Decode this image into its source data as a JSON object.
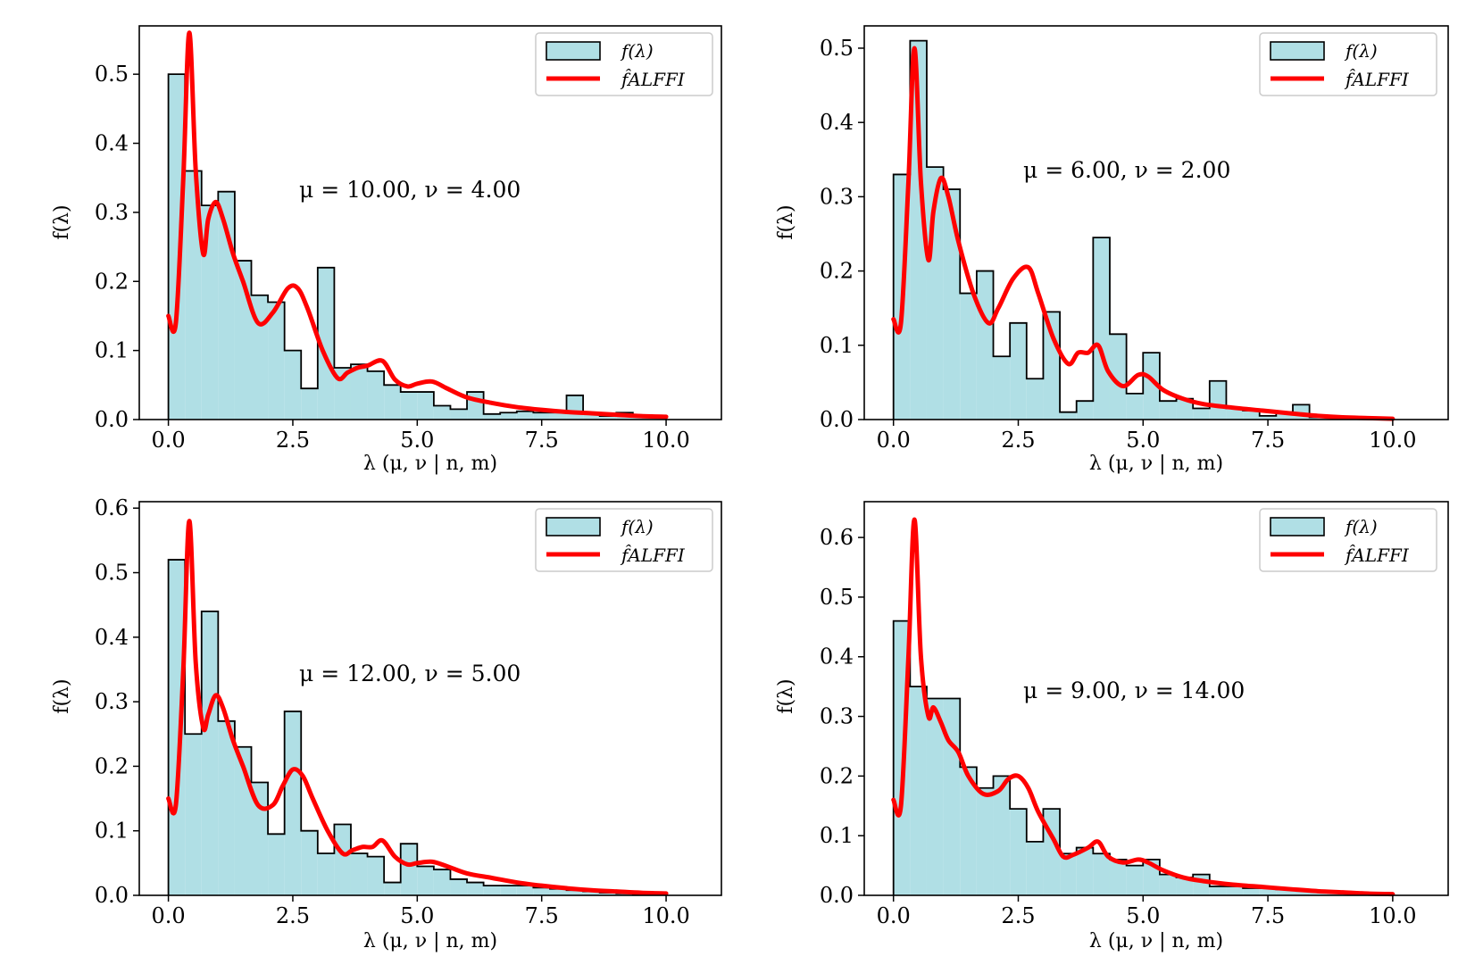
{
  "colors": {
    "hist_fill": "#b0dfe5",
    "hist_edge": "#000000",
    "curve": "#ff0000",
    "frame": "#000000",
    "legend_edge": "#cccccc"
  },
  "chart_data": [
    {
      "type": "bar",
      "annotation": "μ = 10.00, ν = 4.00",
      "xlabel": "λ (μ, ν | n, m)",
      "ylabel": "f(λ)",
      "xlim": [
        0,
        10
      ],
      "ylim": [
        0,
        0.57
      ],
      "xticks": [
        "0.0",
        "2.5",
        "5.0",
        "7.5",
        "10.0"
      ],
      "yticks": [
        "0.0",
        "0.1",
        "0.2",
        "0.3",
        "0.4",
        "0.5"
      ],
      "legend": [
        "f(λ)",
        "f̂ALFFI"
      ],
      "legend_position": "upper right",
      "bin_width": 0.3333,
      "bin_start": 0,
      "histogram": [
        0.5,
        0.36,
        0.31,
        0.33,
        0.23,
        0.18,
        0.17,
        0.1,
        0.045,
        0.22,
        0.075,
        0.08,
        0.07,
        0.05,
        0.04,
        0.04,
        0.02,
        0.015,
        0.04,
        0.008,
        0.01,
        0.012,
        0.01,
        0.01,
        0.035,
        0.008,
        0.005,
        0.01,
        0.006,
        0.003
      ],
      "curve": {
        "x": [
          0,
          0.15,
          0.3,
          0.42,
          0.55,
          0.7,
          0.8,
          0.95,
          1.1,
          1.3,
          1.5,
          1.8,
          2.1,
          2.4,
          2.6,
          2.8,
          3.1,
          3.4,
          3.6,
          3.8,
          4.0,
          4.3,
          4.55,
          4.8,
          5.0,
          5.3,
          5.6,
          6.0,
          6.5,
          7.0,
          7.5,
          8.0,
          8.5,
          9.0,
          9.5,
          10.0
        ],
        "y": [
          0.15,
          0.14,
          0.35,
          0.56,
          0.36,
          0.24,
          0.29,
          0.315,
          0.29,
          0.24,
          0.2,
          0.14,
          0.155,
          0.19,
          0.19,
          0.16,
          0.1,
          0.06,
          0.068,
          0.075,
          0.078,
          0.085,
          0.058,
          0.048,
          0.052,
          0.055,
          0.045,
          0.032,
          0.024,
          0.018,
          0.014,
          0.011,
          0.009,
          0.007,
          0.005,
          0.004
        ]
      }
    },
    {
      "type": "bar",
      "annotation": "μ = 6.00, ν = 2.00",
      "xlabel": "λ (μ, ν | n, m)",
      "ylabel": "f(λ)",
      "xlim": [
        0,
        10
      ],
      "ylim": [
        0,
        0.53
      ],
      "xticks": [
        "0.0",
        "2.5",
        "5.0",
        "7.5",
        "10.0"
      ],
      "yticks": [
        "0.0",
        "0.1",
        "0.2",
        "0.3",
        "0.4",
        "0.5"
      ],
      "legend": [
        "f(λ)",
        "f̂ALFFI"
      ],
      "legend_position": "upper right",
      "bin_width": 0.3333,
      "bin_start": 0,
      "histogram": [
        0.33,
        0.51,
        0.34,
        0.31,
        0.17,
        0.2,
        0.085,
        0.13,
        0.055,
        0.145,
        0.01,
        0.025,
        0.245,
        0.115,
        0.035,
        0.09,
        0.025,
        0.028,
        0.015,
        0.052,
        0.015,
        0.012,
        0.005,
        0.01,
        0.02,
        0.003,
        0.005,
        0.003,
        0.002,
        0.001
      ],
      "curve": {
        "x": [
          0,
          0.15,
          0.3,
          0.42,
          0.55,
          0.7,
          0.8,
          0.95,
          1.1,
          1.3,
          1.6,
          1.9,
          2.1,
          2.4,
          2.7,
          2.9,
          3.2,
          3.5,
          3.7,
          3.9,
          4.1,
          4.3,
          4.6,
          4.9,
          5.1,
          5.4,
          5.8,
          6.2,
          6.8,
          7.4,
          8.0,
          8.5,
          9.0,
          9.5,
          10.0
        ],
        "y": [
          0.135,
          0.13,
          0.32,
          0.5,
          0.32,
          0.215,
          0.28,
          0.325,
          0.3,
          0.24,
          0.17,
          0.13,
          0.15,
          0.19,
          0.205,
          0.17,
          0.11,
          0.075,
          0.09,
          0.09,
          0.1,
          0.065,
          0.045,
          0.06,
          0.058,
          0.04,
          0.028,
          0.021,
          0.016,
          0.012,
          0.008,
          0.005,
          0.003,
          0.002,
          0.001
        ]
      }
    },
    {
      "type": "bar",
      "annotation": "μ = 12.00, ν = 5.00",
      "xlabel": "λ (μ, ν | n, m)",
      "ylabel": "f(λ)",
      "xlim": [
        0,
        10
      ],
      "ylim": [
        0,
        0.61
      ],
      "xticks": [
        "0.0",
        "2.5",
        "5.0",
        "7.5",
        "10.0"
      ],
      "yticks": [
        "0.0",
        "0.1",
        "0.2",
        "0.3",
        "0.4",
        "0.5",
        "0.6"
      ],
      "legend": [
        "f(λ)",
        "f̂ALFFI"
      ],
      "legend_position": "upper right",
      "bin_width": 0.3333,
      "bin_start": 0,
      "histogram": [
        0.52,
        0.25,
        0.44,
        0.27,
        0.23,
        0.175,
        0.095,
        0.285,
        0.1,
        0.065,
        0.11,
        0.065,
        0.06,
        0.02,
        0.08,
        0.045,
        0.04,
        0.025,
        0.02,
        0.015,
        0.015,
        0.015,
        0.012,
        0.01,
        0.008,
        0.006,
        0.004,
        0.003,
        0.002,
        0.001
      ],
      "curve": {
        "x": [
          0,
          0.15,
          0.3,
          0.42,
          0.55,
          0.7,
          0.8,
          0.95,
          1.1,
          1.3,
          1.5,
          1.8,
          2.1,
          2.3,
          2.5,
          2.7,
          2.9,
          3.2,
          3.5,
          3.7,
          3.9,
          4.1,
          4.3,
          4.55,
          4.8,
          5.0,
          5.3,
          5.6,
          6.0,
          6.5,
          7.0,
          7.5,
          8.0,
          8.5,
          9.0,
          9.5,
          10.0
        ],
        "y": [
          0.15,
          0.14,
          0.35,
          0.58,
          0.36,
          0.26,
          0.28,
          0.31,
          0.29,
          0.24,
          0.2,
          0.14,
          0.14,
          0.17,
          0.195,
          0.185,
          0.15,
          0.1,
          0.065,
          0.07,
          0.075,
          0.075,
          0.085,
          0.06,
          0.048,
          0.05,
          0.052,
          0.045,
          0.034,
          0.027,
          0.02,
          0.015,
          0.011,
          0.008,
          0.006,
          0.004,
          0.003
        ]
      }
    },
    {
      "type": "bar",
      "annotation": "μ = 9.00, ν = 14.00",
      "xlabel": "λ (μ, ν | n, m)",
      "ylabel": "f(λ)",
      "xlim": [
        0,
        10
      ],
      "ylim": [
        0,
        0.66
      ],
      "xticks": [
        "0.0",
        "2.5",
        "5.0",
        "7.5",
        "10.0"
      ],
      "yticks": [
        "0.0",
        "0.1",
        "0.2",
        "0.3",
        "0.4",
        "0.5",
        "0.6"
      ],
      "legend": [
        "f(λ)",
        "f̂ALFFI"
      ],
      "legend_position": "upper right",
      "bin_width": 0.3333,
      "bin_start": 0,
      "histogram": [
        0.46,
        0.35,
        0.33,
        0.33,
        0.215,
        0.18,
        0.2,
        0.145,
        0.09,
        0.145,
        0.07,
        0.08,
        0.07,
        0.06,
        0.05,
        0.06,
        0.035,
        0.03,
        0.035,
        0.015,
        0.015,
        0.012,
        0.012,
        0.01,
        0.008,
        0.006,
        0.005,
        0.004,
        0.003,
        0.002
      ],
      "curve": {
        "x": [
          0,
          0.15,
          0.3,
          0.42,
          0.55,
          0.7,
          0.8,
          0.95,
          1.1,
          1.3,
          1.5,
          1.8,
          2.1,
          2.3,
          2.5,
          2.7,
          2.9,
          3.2,
          3.4,
          3.6,
          3.9,
          4.1,
          4.3,
          4.6,
          4.9,
          5.1,
          5.4,
          5.8,
          6.2,
          6.8,
          7.4,
          8.0,
          8.5,
          9.0,
          9.5,
          10.0
        ],
        "y": [
          0.16,
          0.15,
          0.4,
          0.63,
          0.4,
          0.3,
          0.315,
          0.29,
          0.26,
          0.24,
          0.2,
          0.17,
          0.175,
          0.195,
          0.2,
          0.18,
          0.14,
          0.095,
          0.065,
          0.068,
          0.08,
          0.09,
          0.065,
          0.055,
          0.06,
          0.055,
          0.042,
          0.03,
          0.024,
          0.018,
          0.014,
          0.01,
          0.007,
          0.005,
          0.003,
          0.002
        ]
      }
    }
  ]
}
